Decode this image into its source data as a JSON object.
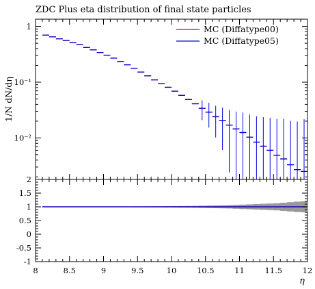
{
  "chart_data": {
    "type": "line",
    "title": "ZDC Plus eta distribution of final state particles",
    "xlabel": "η",
    "ylabel": "1/N dN/dη",
    "xlim": [
      8,
      12
    ],
    "ylim": [
      0.0018,
      1.35
    ],
    "yscale": "log",
    "legend_position": "top-right",
    "x_ticks": [
      "8",
      "8.5",
      "9",
      "9.5",
      "10",
      "10.5",
      "11",
      "11.5",
      "12"
    ],
    "y_ticks": [
      "10⁻²",
      "10⁻¹",
      "1"
    ],
    "x": [
      8.15,
      8.25,
      8.35,
      8.45,
      8.55,
      8.65,
      8.75,
      8.85,
      8.95,
      9.05,
      9.15,
      9.25,
      9.35,
      9.45,
      9.55,
      9.65,
      9.75,
      9.85,
      9.95,
      10.05,
      10.15,
      10.25,
      10.35,
      10.45,
      10.55,
      10.65,
      10.75,
      10.85,
      10.95,
      11.05,
      11.15,
      11.25,
      11.35,
      11.45,
      11.55,
      11.65,
      11.75,
      11.85,
      11.95
    ],
    "series": [
      {
        "name": "MC (Diffatype00)",
        "color": "#e00000",
        "values": [
          0.7,
          0.65,
          0.6,
          0.56,
          0.51,
          0.47,
          0.42,
          0.38,
          0.34,
          0.305,
          0.27,
          0.235,
          0.205,
          0.178,
          0.152,
          0.13,
          0.11,
          0.094,
          0.081,
          0.069,
          0.058,
          0.049,
          0.041,
          0.034,
          0.029,
          0.024,
          0.0205,
          0.017,
          0.0145,
          0.0125,
          0.0103,
          0.0084,
          0.0071,
          0.006,
          0.0049,
          0.0042,
          0.0033,
          0.0027,
          0.0025
        ]
      },
      {
        "name": "MC (Diffatype05)",
        "color": "#0000e0",
        "values": [
          0.7,
          0.65,
          0.6,
          0.56,
          0.51,
          0.47,
          0.42,
          0.38,
          0.34,
          0.305,
          0.27,
          0.235,
          0.205,
          0.178,
          0.152,
          0.13,
          0.11,
          0.094,
          0.081,
          0.069,
          0.058,
          0.049,
          0.041,
          0.034,
          0.029,
          0.024,
          0.0205,
          0.017,
          0.0145,
          0.0125,
          0.0103,
          0.0084,
          0.0071,
          0.006,
          0.0049,
          0.0042,
          0.0033,
          0.0027,
          0.0025
        ]
      }
    ],
    "ratio": {
      "ylim": [
        -1,
        2
      ],
      "y_ticks": [
        "2",
        "1.5",
        "1",
        "0.5",
        "0",
        "-0.5",
        "-1"
      ],
      "values": [
        1.0,
        1.0,
        1.0,
        1.0,
        1.0,
        1.0,
        1.0,
        1.0,
        1.0,
        1.0,
        1.0,
        1.0,
        1.0,
        1.0,
        1.0,
        1.0,
        1.0,
        1.0,
        1.0,
        1.0,
        1.0,
        1.0,
        1.0,
        1.0,
        1.0,
        1.0,
        1.0,
        1.0,
        1.0,
        1.0,
        1.0,
        1.0,
        1.0,
        1.0,
        1.0,
        1.0,
        1.0,
        1.0,
        1.0
      ],
      "band_halfwidth": [
        0.01,
        0.01,
        0.01,
        0.01,
        0.01,
        0.01,
        0.01,
        0.01,
        0.01,
        0.01,
        0.01,
        0.012,
        0.012,
        0.014,
        0.015,
        0.016,
        0.018,
        0.02,
        0.022,
        0.025,
        0.028,
        0.03,
        0.035,
        0.04,
        0.045,
        0.05,
        0.055,
        0.06,
        0.07,
        0.08,
        0.09,
        0.1,
        0.11,
        0.12,
        0.13,
        0.15,
        0.17,
        0.19,
        0.2
      ],
      "band_color": "#999999"
    }
  }
}
